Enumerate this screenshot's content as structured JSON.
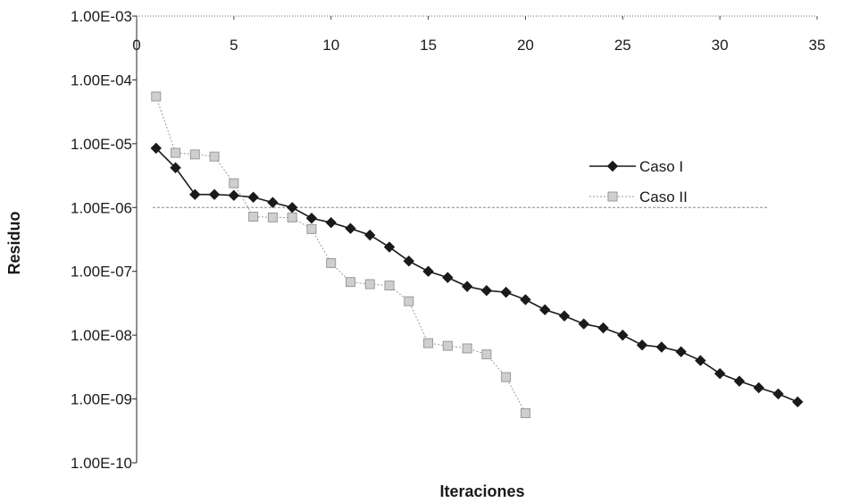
{
  "chart_data": {
    "type": "line",
    "title": "",
    "xlabel": "Iteraciones",
    "ylabel": "Residuo",
    "x_axis_position": "top",
    "y_scale": "log",
    "xlim": [
      0,
      35
    ],
    "ylim": [
      1e-10,
      0.001
    ],
    "x_ticks": [
      0,
      5,
      10,
      15,
      20,
      25,
      30,
      35
    ],
    "x_tick_labels": [
      "0",
      "5",
      "10",
      "15",
      "20",
      "25",
      "30",
      "35"
    ],
    "y_tick_labels": [
      "1.00E-03",
      "1.00E-04",
      "1.00E-05",
      "1.00E-06",
      "1.00E-07",
      "1.00E-08",
      "1.00E-09",
      "1.00E-10"
    ],
    "y_tick_values": [
      0.001,
      0.0001,
      1e-05,
      1e-06,
      1e-07,
      1e-08,
      1e-09,
      1e-10
    ],
    "reference_line": 1e-06,
    "grid": false,
    "legend_position": "right",
    "series": [
      {
        "name": "Caso I",
        "color": "#1a1a1a",
        "marker": "diamond",
        "x": [
          1,
          2,
          3,
          4,
          5,
          6,
          7,
          8,
          9,
          10,
          11,
          12,
          13,
          14,
          15,
          16,
          17,
          18,
          19,
          20,
          21,
          22,
          23,
          24,
          25,
          26,
          27,
          28,
          29,
          30,
          31,
          32,
          33,
          34
        ],
        "y": [
          8.5e-06,
          4.2e-06,
          1.6e-06,
          1.6e-06,
          1.55e-06,
          1.45e-06,
          1.2e-06,
          1e-06,
          6.8e-07,
          5.8e-07,
          4.7e-07,
          3.7e-07,
          2.4e-07,
          1.45e-07,
          1e-07,
          8e-08,
          5.8e-08,
          5e-08,
          4.7e-08,
          3.6e-08,
          2.5e-08,
          2e-08,
          1.5e-08,
          1.3e-08,
          1e-08,
          7e-09,
          6.5e-09,
          5.5e-09,
          4e-09,
          2.5e-09,
          1.9e-09,
          1.5e-09,
          1.2e-09,
          9e-10
        ]
      },
      {
        "name": "Caso II",
        "color": "#999999",
        "marker": "square",
        "x": [
          1,
          2,
          3,
          4,
          5,
          6,
          7,
          8,
          9,
          10,
          11,
          12,
          13,
          14,
          15,
          16,
          17,
          18,
          19,
          20
        ],
        "y": [
          5.5e-05,
          7.2e-06,
          6.8e-06,
          6.3e-06,
          2.4e-06,
          7.2e-07,
          7e-07,
          7e-07,
          4.6e-07,
          1.35e-07,
          6.8e-08,
          6.3e-08,
          6e-08,
          3.4e-08,
          7.5e-09,
          6.8e-09,
          6.2e-09,
          5e-09,
          2.2e-09,
          6e-10
        ]
      }
    ]
  }
}
